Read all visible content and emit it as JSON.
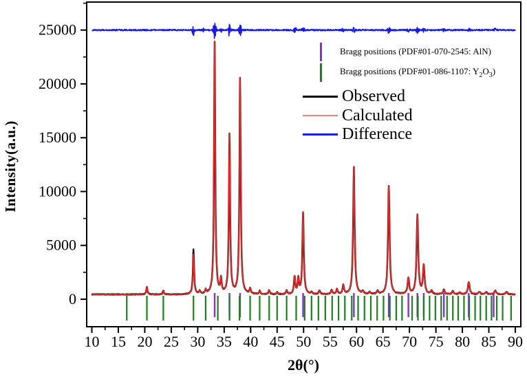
{
  "axes": {
    "x_label": "2θ(°)",
    "y_label": "Intensity(a.u.)"
  },
  "legend": {
    "bragg_aln_label": "Bragg positions (PDF#01-070-2545: AlN)",
    "bragg_y2o3_pre": "Bragg positions (PDF#01-086-1107: Y",
    "bragg_y2o3_sub2": "2",
    "bragg_y2o3_o": "O",
    "bragg_y2o3_sub3": "3",
    "bragg_y2o3_post": ")",
    "observed_label": "Observed",
    "calculated_label": "Calculated",
    "difference_label": "Difference"
  },
  "chart_data": {
    "type": "line",
    "title": "",
    "xlabel": "2θ(°)",
    "ylabel": "Intensity(a.u.)",
    "x_range": [
      10,
      90
    ],
    "ylim": [
      -2550,
      27600
    ],
    "x_ticks": [
      10,
      15,
      20,
      25,
      30,
      35,
      40,
      45,
      50,
      55,
      60,
      65,
      70,
      75,
      80,
      85,
      90
    ],
    "x_minor_ticks": [
      12.5,
      17.5,
      22.5,
      27.5,
      32.5,
      37.5,
      42.5,
      47.5,
      52.5,
      57.5,
      62.5,
      67.5,
      72.5,
      77.5,
      82.5,
      87.5
    ],
    "y_ticks": [
      0,
      5000,
      10000,
      15000,
      20000,
      25000
    ],
    "y_minor_ticks": [
      2500,
      7500,
      12500,
      17500,
      22500,
      27500
    ],
    "grid": false,
    "legend_position": "upper-right-inside",
    "background_level": 450,
    "difference_level": 25000,
    "series": [
      {
        "name": "Observed",
        "color": "#000000"
      },
      {
        "name": "Calculated",
        "color": "#f52020"
      },
      {
        "name": "Difference",
        "color": "#1a1ae6"
      }
    ],
    "calculated_peaks": [
      [
        20.4,
        700
      ],
      [
        23.5,
        350
      ],
      [
        29.2,
        3700
      ],
      [
        30.4,
        300
      ],
      [
        31.5,
        350
      ],
      [
        33.2,
        23400
      ],
      [
        34.4,
        1250
      ],
      [
        36.0,
        14750
      ],
      [
        38.0,
        20050
      ],
      [
        39.9,
        500
      ],
      [
        41.7,
        300
      ],
      [
        43.5,
        400
      ],
      [
        45.0,
        200
      ],
      [
        46.8,
        350
      ],
      [
        48.3,
        1600
      ],
      [
        49.0,
        1400
      ],
      [
        49.9,
        7600
      ],
      [
        51.5,
        200
      ],
      [
        53.0,
        350
      ],
      [
        55.3,
        400
      ],
      [
        56.3,
        450
      ],
      [
        57.5,
        830
      ],
      [
        59.5,
        11800
      ],
      [
        61.2,
        250
      ],
      [
        62.5,
        200
      ],
      [
        64.0,
        300
      ],
      [
        66.1,
        10030
      ],
      [
        69.8,
        1470
      ],
      [
        71.5,
        7350
      ],
      [
        72.7,
        2620
      ],
      [
        74.2,
        300
      ],
      [
        76.5,
        420
      ],
      [
        78.2,
        300
      ],
      [
        79.5,
        200
      ],
      [
        81.2,
        1150
      ],
      [
        83.2,
        250
      ],
      [
        84.5,
        200
      ],
      [
        86.2,
        350
      ],
      [
        88.3,
        250
      ]
    ],
    "observed_extra_peaks": [
      [
        29.2,
        470
      ]
    ],
    "difference_spikes": [
      [
        29.2,
        480
      ],
      [
        31.0,
        140
      ],
      [
        33.2,
        780
      ],
      [
        34.4,
        200
      ],
      [
        36.0,
        560
      ],
      [
        38.0,
        560
      ],
      [
        48.4,
        240
      ],
      [
        49.9,
        360
      ],
      [
        57.5,
        140
      ],
      [
        59.5,
        300
      ],
      [
        66.1,
        260
      ],
      [
        69.8,
        140
      ],
      [
        71.5,
        280
      ],
      [
        72.7,
        200
      ],
      [
        76.5,
        120
      ],
      [
        81.2,
        160
      ],
      [
        86.2,
        150
      ]
    ],
    "bragg_aln_positions": [
      33.2,
      36.0,
      38.0,
      49.9,
      59.5,
      66.1,
      69.8,
      71.5,
      72.7,
      76.5,
      81.2,
      85.9
    ],
    "bragg_y2o3_positions": [
      16.6,
      20.4,
      23.5,
      29.2,
      31.5,
      33.8,
      36.0,
      37.9,
      39.9,
      41.7,
      43.5,
      45.0,
      46.8,
      48.6,
      50.2,
      51.5,
      52.8,
      54.1,
      55.4,
      56.6,
      57.8,
      59.1,
      60.3,
      61.5,
      62.7,
      63.9,
      65.1,
      66.3,
      67.5,
      68.6,
      70.5,
      71.6,
      72.7,
      73.8,
      74.9,
      76.0,
      77.1,
      78.2,
      79.2,
      80.3,
      81.3,
      82.4,
      83.4,
      84.5,
      85.5,
      86.5,
      87.6,
      89.2
    ],
    "colors": {
      "aln_tick": "#8a2be2",
      "y2o3_tick": "#158515",
      "observed": "#000000",
      "calculated": "#f52020",
      "difference": "#1a1ae6",
      "legend_calculated_swatch": "#f08080",
      "frame": "#000000"
    }
  }
}
